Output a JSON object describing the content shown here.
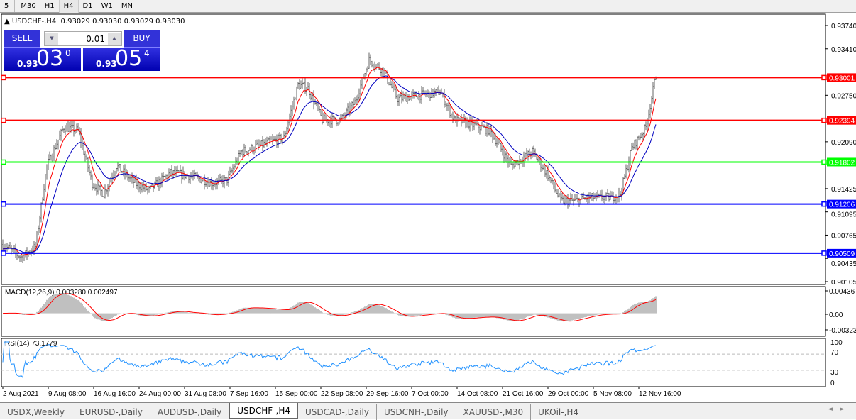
{
  "timeframes": [
    {
      "label": "5"
    },
    {
      "label": "M30"
    },
    {
      "label": "H1"
    },
    {
      "label": "H4",
      "active": true
    },
    {
      "label": "D1"
    },
    {
      "label": "W1"
    },
    {
      "label": "MN"
    }
  ],
  "chart_title": {
    "symbol": "USDCHF-,H4",
    "ohlc": "0.93029 0.93030 0.93029 0.93030"
  },
  "trade_panel": {
    "sell_label": "SELL",
    "buy_label": "BUY",
    "lot": "0.01",
    "sell_small": "0.93",
    "sell_big": "03",
    "sell_tiny": "0",
    "buy_small": "0.93",
    "buy_big": "05",
    "buy_tiny": "4",
    "sell_color": "#0000c0",
    "buy_color": "#0000c0"
  },
  "chart_data": {
    "type": "ohlc-bar",
    "timeframe": "H4",
    "price_axis": {
      "ylim": [
        0.90105,
        0.9374
      ],
      "ticks": [
        "0.93740",
        "0.93410",
        "0.92750",
        "0.92090",
        "0.91425",
        "0.91095",
        "0.90765",
        "0.90435",
        "0.90105"
      ]
    },
    "price_path": [
      [
        "2021-08-02 00:00",
        0.9063
      ],
      [
        "2021-08-04 04:00",
        0.9045
      ],
      [
        "2021-08-05 20:00",
        0.906
      ],
      [
        "2021-08-09 04:00",
        0.9175
      ],
      [
        "2021-08-11 04:00",
        0.923
      ],
      [
        "2021-08-12 20:00",
        0.9225
      ],
      [
        "2021-08-16 12:00",
        0.915
      ],
      [
        "2021-08-17 20:00",
        0.9135
      ],
      [
        "2021-08-19 08:00",
        0.9175
      ],
      [
        "2021-08-23 12:00",
        0.915
      ],
      [
        "2021-08-25 04:00",
        0.914
      ],
      [
        "2021-08-27 16:00",
        0.9165
      ],
      [
        "2021-09-01 04:00",
        0.916
      ],
      [
        "2021-09-03 16:00",
        0.915
      ],
      [
        "2021-09-07 08:00",
        0.9155
      ],
      [
        "2021-09-09 00:00",
        0.9195
      ],
      [
        "2021-09-13 12:00",
        0.9205
      ],
      [
        "2021-09-16 00:00",
        0.9215
      ],
      [
        "2021-09-17 16:00",
        0.929
      ],
      [
        "2021-09-20 20:00",
        0.9285
      ],
      [
        "2021-09-22 12:00",
        0.924
      ],
      [
        "2021-09-24 16:00",
        0.924
      ],
      [
        "2021-09-28 08:00",
        0.9265
      ],
      [
        "2021-09-30 00:00",
        0.9325
      ],
      [
        "2021-10-01 16:00",
        0.931
      ],
      [
        "2021-10-05 08:00",
        0.927
      ],
      [
        "2021-10-07 20:00",
        0.9275
      ],
      [
        "2021-10-12 08:00",
        0.928
      ],
      [
        "2021-10-14 00:00",
        0.924
      ],
      [
        "2021-10-15 16:00",
        0.9235
      ],
      [
        "2021-10-20 04:00",
        0.9225
      ],
      [
        "2021-10-22 16:00",
        0.9175
      ],
      [
        "2021-10-27 04:00",
        0.9195
      ],
      [
        "2021-10-28 20:00",
        0.9165
      ],
      [
        "2021-11-01 12:00",
        0.9125
      ],
      [
        "2021-11-03 04:00",
        0.9125
      ],
      [
        "2021-11-04 20:00",
        0.913
      ],
      [
        "2021-11-09 08:00",
        0.913
      ],
      [
        "2021-11-10 12:00",
        0.9135
      ],
      [
        "2021-11-11 20:00",
        0.92
      ],
      [
        "2021-11-15 12:00",
        0.923
      ],
      [
        "2021-11-16 16:00",
        0.9303
      ]
    ],
    "hlines": [
      {
        "value": "0.93001",
        "color": "#ff0000"
      },
      {
        "value": "0.92394",
        "color": "#ff0000"
      },
      {
        "value": "0.91802",
        "color": "#00ff00"
      },
      {
        "value": "0.91206",
        "color": "#0000ff"
      },
      {
        "value": "0.90509",
        "color": "#0000ff"
      }
    ],
    "moving_averages": [
      {
        "color": "#ff0000",
        "fast": true
      },
      {
        "color": "#0000c0",
        "fast": false
      }
    ],
    "macd": {
      "label": "MACD(12,26,9) 0.003280 0.002497",
      "ticks": [
        "0.00436",
        "0.00",
        "-0.00323"
      ],
      "ylim": [
        -0.00323,
        0.00436
      ],
      "hist_color": "#c0c0c0",
      "signal_color": "#ff0000"
    },
    "rsi": {
      "label": "RSI(14) 73.1779",
      "ticks": [
        "100",
        "70",
        "30",
        "0"
      ],
      "levels": [
        70,
        30
      ],
      "color": "#1e90ff"
    },
    "time_ticks": [
      [
        "2 Aug 2021",
        "2021-08-02 00:00"
      ],
      [
        "9 Aug 08:00",
        "2021-08-09 08:00"
      ],
      [
        "16 Aug 16:00",
        "2021-08-16 16:00"
      ],
      [
        "24 Aug 00:00",
        "2021-08-24 00:00"
      ],
      [
        "31 Aug 08:00",
        "2021-08-31 08:00"
      ],
      [
        "7 Sep 16:00",
        "2021-09-07 16:00"
      ],
      [
        "15 Sep 00:00",
        "2021-09-15 00:00"
      ],
      [
        "22 Sep 08:00",
        "2021-09-22 08:00"
      ],
      [
        "29 Sep 16:00",
        "2021-09-29 16:00"
      ],
      [
        "7 Oct 00:00",
        "2021-10-07 00:00"
      ],
      [
        "14 Oct 08:00",
        "2021-10-14 08:00"
      ],
      [
        "21 Oct 16:00",
        "2021-10-21 16:00"
      ],
      [
        "29 Oct 00:00",
        "2021-10-29 00:00"
      ],
      [
        "5 Nov 08:00",
        "2021-11-05 08:00"
      ],
      [
        "12 Nov 16:00",
        "2021-11-12 16:00"
      ]
    ]
  },
  "tabs": [
    {
      "label": "USDX,Weekly"
    },
    {
      "label": "EURUSD-,Daily"
    },
    {
      "label": "AUDUSD-,Daily"
    },
    {
      "label": "USDCHF-,H4",
      "active": true
    },
    {
      "label": "USDCAD-,Daily"
    },
    {
      "label": "USDCNH-,Daily"
    },
    {
      "label": "XAUUSD-,M30"
    },
    {
      "label": "UKOil-,H4"
    }
  ],
  "scroll": {
    "left": "◄",
    "right": "►"
  }
}
